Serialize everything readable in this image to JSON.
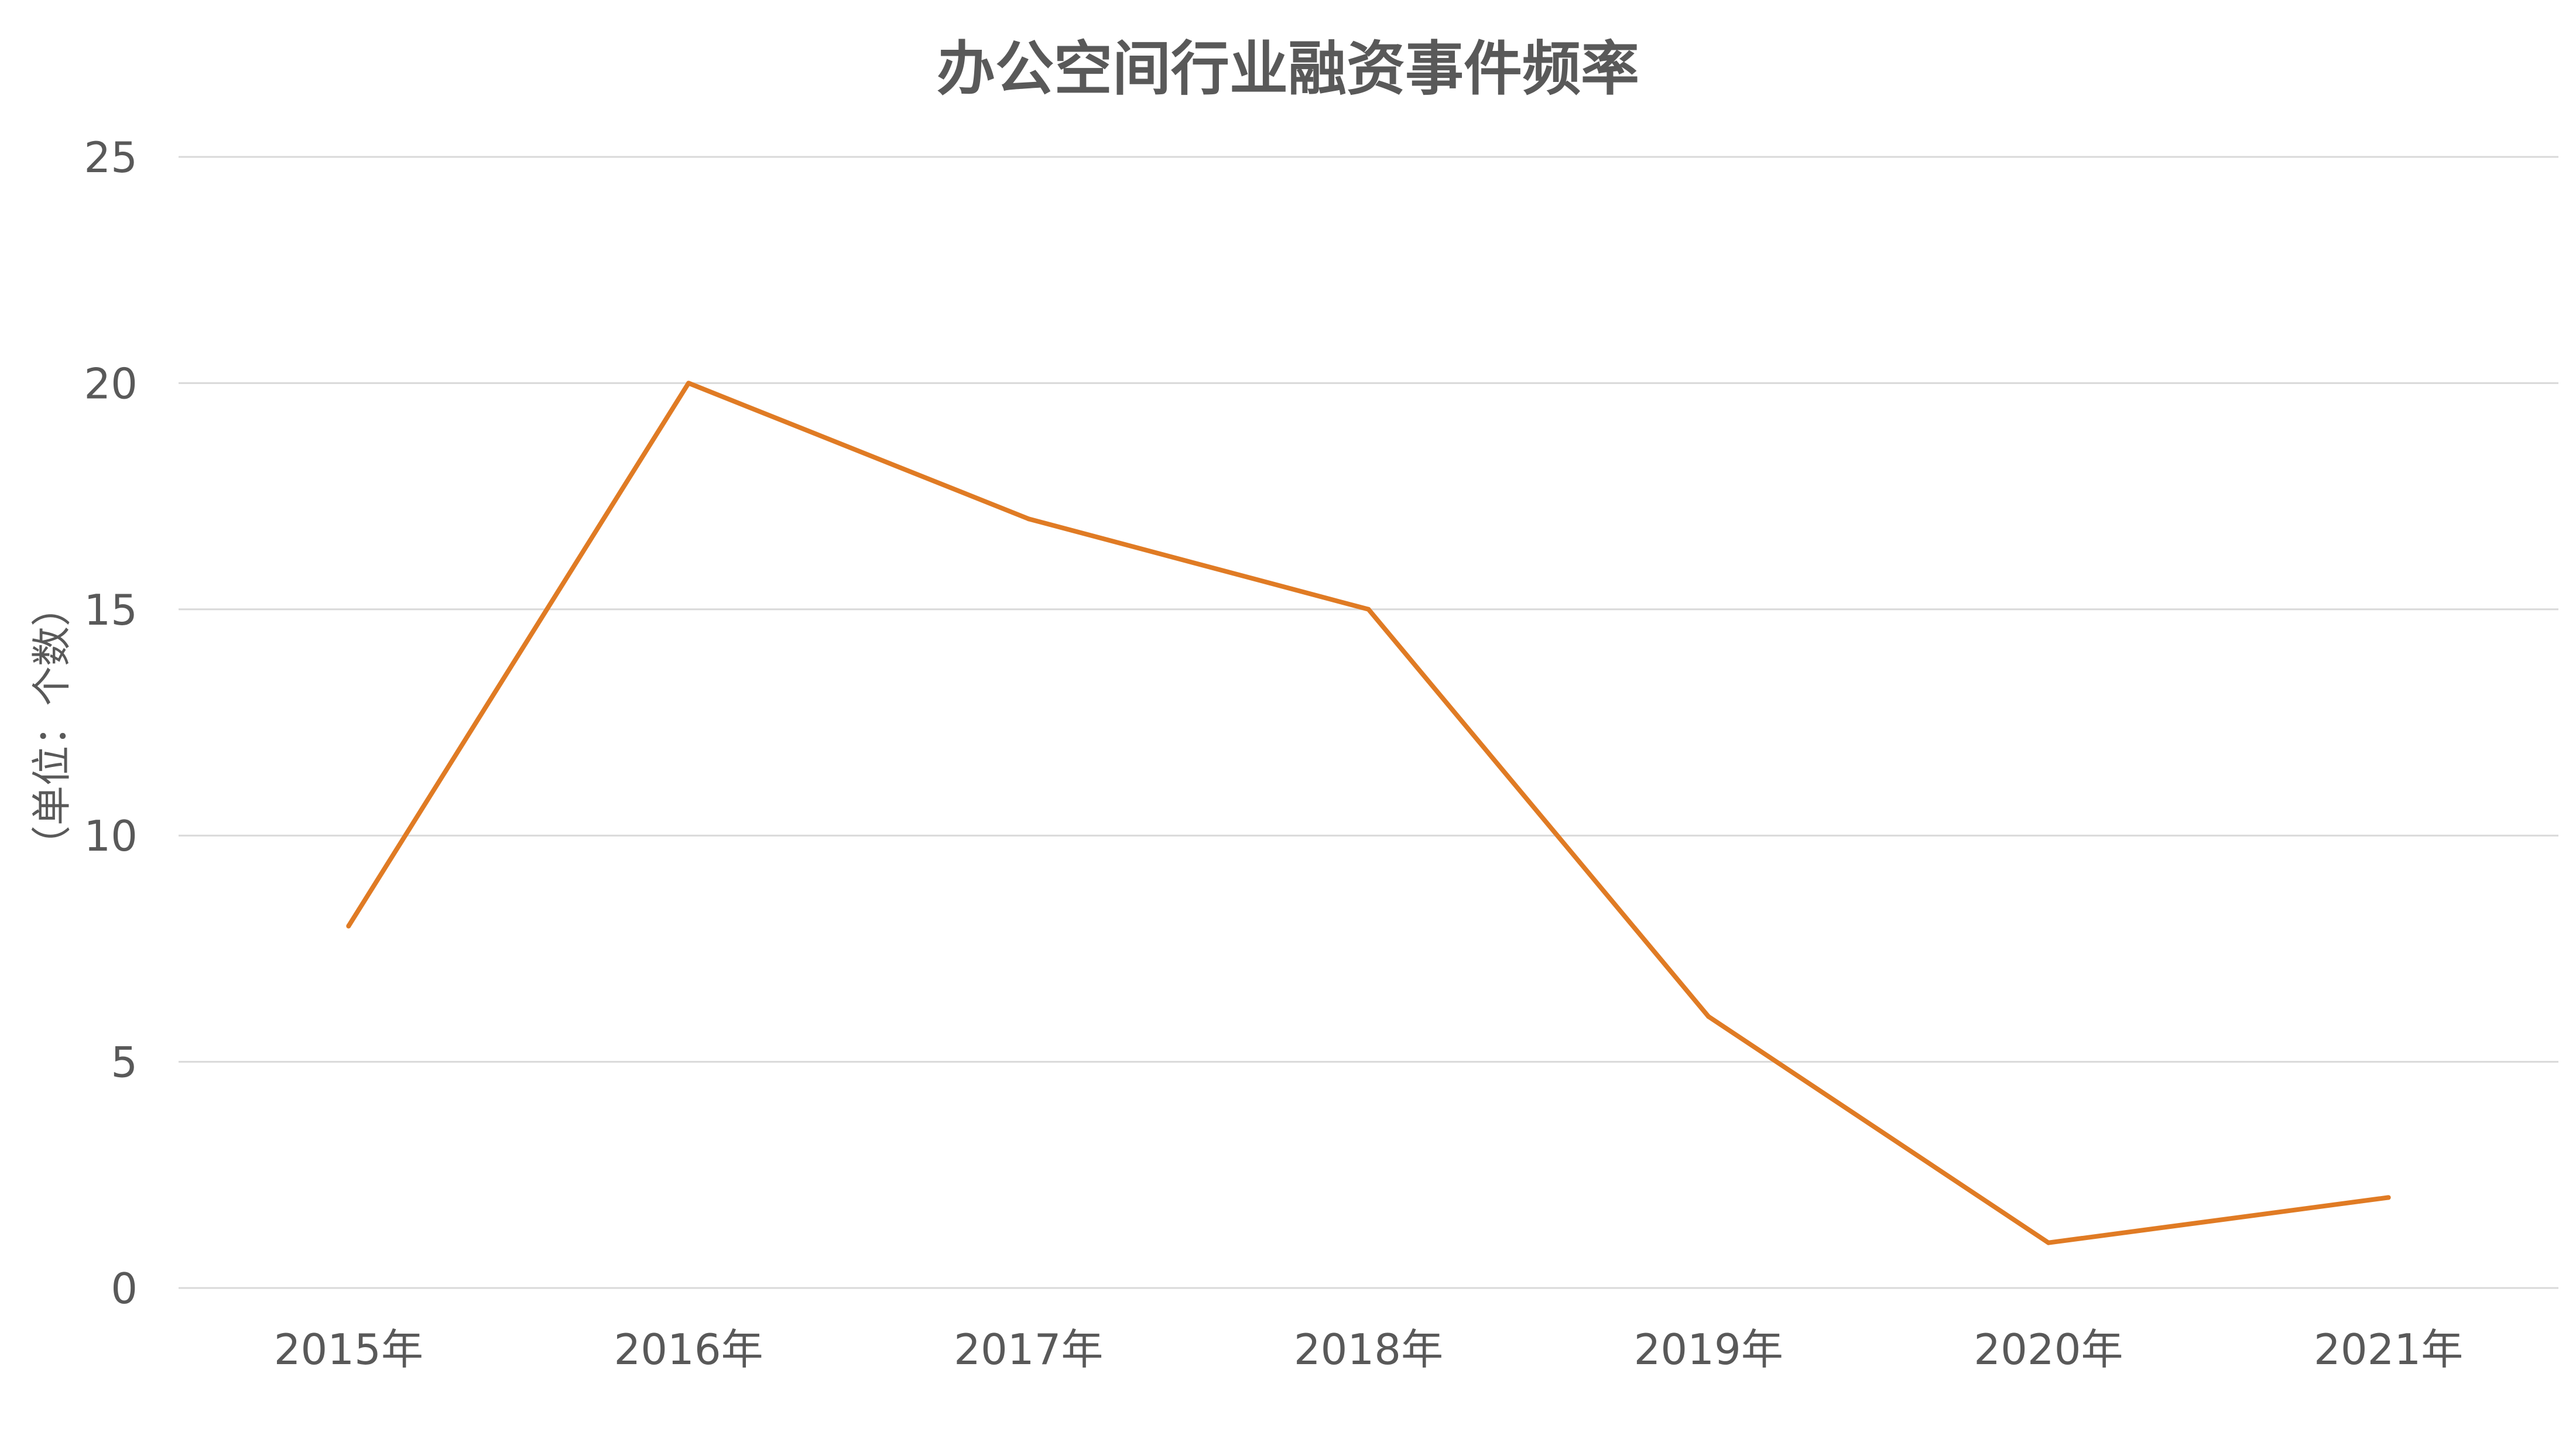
{
  "chart_data": {
    "type": "line",
    "title": "办公空间行业融资事件频率",
    "xlabel": "",
    "ylabel": "（单位：个数）",
    "categories": [
      "2015年",
      "2016年",
      "2017年",
      "2018年",
      "2019年",
      "2020年",
      "2021年"
    ],
    "series": [
      {
        "values": [
          8,
          20,
          17,
          15,
          6,
          1,
          2
        ]
      }
    ],
    "ylim": [
      0,
      25
    ],
    "yticks": [
      0,
      5,
      10,
      15,
      20,
      25
    ],
    "grid": true,
    "legend": "none",
    "colors": {
      "line": "#E07B24",
      "grid": "#D9D9D9",
      "text": "#595959"
    }
  }
}
